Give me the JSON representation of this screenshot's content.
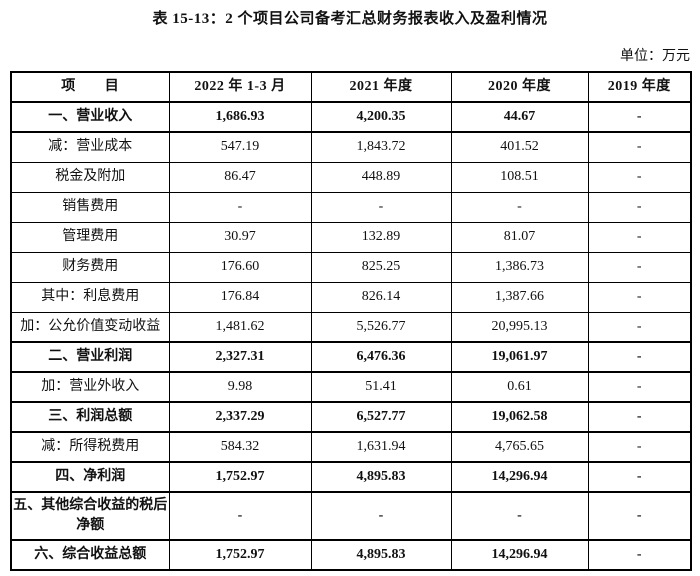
{
  "page": {
    "title": "表 15-13：2 个项目公司备考汇总财务报表收入及盈利情况",
    "unit_note": "单位：万元"
  },
  "table": {
    "columns": [
      "项　　目",
      "2022 年 1-3 月",
      "2021 年度",
      "2020 年度",
      "2019 年度"
    ],
    "rows": [
      {
        "label": "一、营业收入",
        "bold": true,
        "values": [
          "1,686.93",
          "4,200.35",
          "44.67",
          "-"
        ]
      },
      {
        "label": "减：营业成本",
        "bold": false,
        "values": [
          "547.19",
          "1,843.72",
          "401.52",
          "-"
        ]
      },
      {
        "label": "税金及附加",
        "bold": false,
        "values": [
          "86.47",
          "448.89",
          "108.51",
          "-"
        ]
      },
      {
        "label": "销售费用",
        "bold": false,
        "values": [
          "-",
          "-",
          "-",
          "-"
        ]
      },
      {
        "label": "管理费用",
        "bold": false,
        "values": [
          "30.97",
          "132.89",
          "81.07",
          "-"
        ]
      },
      {
        "label": "财务费用",
        "bold": false,
        "values": [
          "176.60",
          "825.25",
          "1,386.73",
          "-"
        ]
      },
      {
        "label": "其中：利息费用",
        "bold": false,
        "values": [
          "176.84",
          "826.14",
          "1,387.66",
          "-"
        ]
      },
      {
        "label": "加：公允价值变动收益",
        "bold": false,
        "values": [
          "1,481.62",
          "5,526.77",
          "20,995.13",
          "-"
        ]
      },
      {
        "label": "二、营业利润",
        "bold": true,
        "values": [
          "2,327.31",
          "6,476.36",
          "19,061.97",
          "-"
        ]
      },
      {
        "label": "加：营业外收入",
        "bold": false,
        "values": [
          "9.98",
          "51.41",
          "0.61",
          "-"
        ]
      },
      {
        "label": "三、利润总额",
        "bold": true,
        "values": [
          "2,337.29",
          "6,527.77",
          "19,062.58",
          "-"
        ]
      },
      {
        "label": "减：所得税费用",
        "bold": false,
        "values": [
          "584.32",
          "1,631.94",
          "4,765.65",
          "-"
        ]
      },
      {
        "label": "四、净利润",
        "bold": true,
        "values": [
          "1,752.97",
          "4,895.83",
          "14,296.94",
          "-"
        ]
      },
      {
        "label": "五、其他综合收益的税后净额",
        "bold": true,
        "values": [
          "-",
          "-",
          "-",
          "-"
        ]
      },
      {
        "label": "六、综合收益总额",
        "bold": true,
        "values": [
          "1,752.97",
          "4,895.83",
          "14,296.94",
          "-"
        ]
      }
    ]
  }
}
